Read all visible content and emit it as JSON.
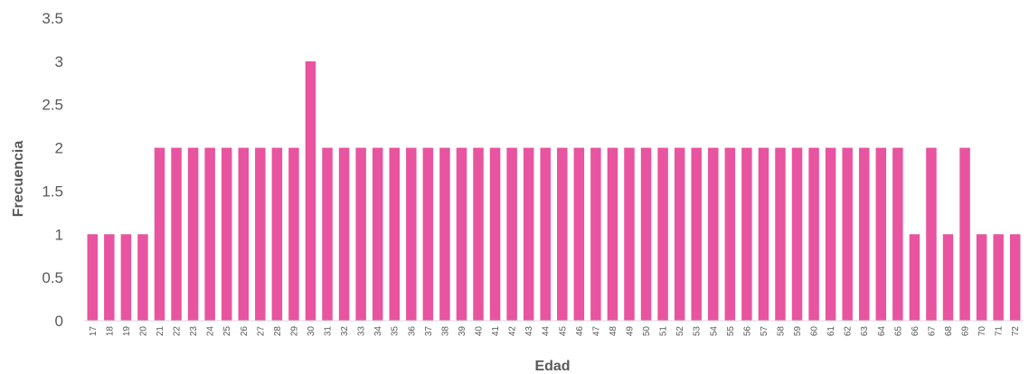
{
  "chart_data": {
    "type": "bar",
    "title": "",
    "xlabel": "Edad",
    "ylabel": "Frecuencia",
    "ylim": [
      0,
      3.5
    ],
    "yticks": [
      "0",
      "0.5",
      "1",
      "1.5",
      "2",
      "2.5",
      "3",
      "3.5"
    ],
    "grid": false,
    "bar_color": "#e8549f",
    "categories": [
      "17",
      "18",
      "19",
      "20",
      "21",
      "22",
      "23",
      "24",
      "25",
      "26",
      "27",
      "28",
      "29",
      "30",
      "31",
      "32",
      "33",
      "34",
      "35",
      "36",
      "37",
      "38",
      "39",
      "40",
      "41",
      "42",
      "43",
      "44",
      "45",
      "46",
      "47",
      "48",
      "49",
      "50",
      "51",
      "52",
      "53",
      "54",
      "55",
      "56",
      "57",
      "58",
      "59",
      "60",
      "61",
      "62",
      "63",
      "64",
      "65",
      "66",
      "67",
      "68",
      "69",
      "70",
      "71",
      "72"
    ],
    "values": [
      1,
      1,
      1,
      1,
      2,
      2,
      2,
      2,
      2,
      2,
      2,
      2,
      2,
      3,
      2,
      2,
      2,
      2,
      2,
      2,
      2,
      2,
      2,
      2,
      2,
      2,
      2,
      2,
      2,
      2,
      2,
      2,
      2,
      2,
      2,
      2,
      2,
      2,
      2,
      2,
      2,
      2,
      2,
      2,
      2,
      2,
      2,
      2,
      2,
      1,
      2,
      1,
      2,
      1,
      1,
      1
    ]
  }
}
